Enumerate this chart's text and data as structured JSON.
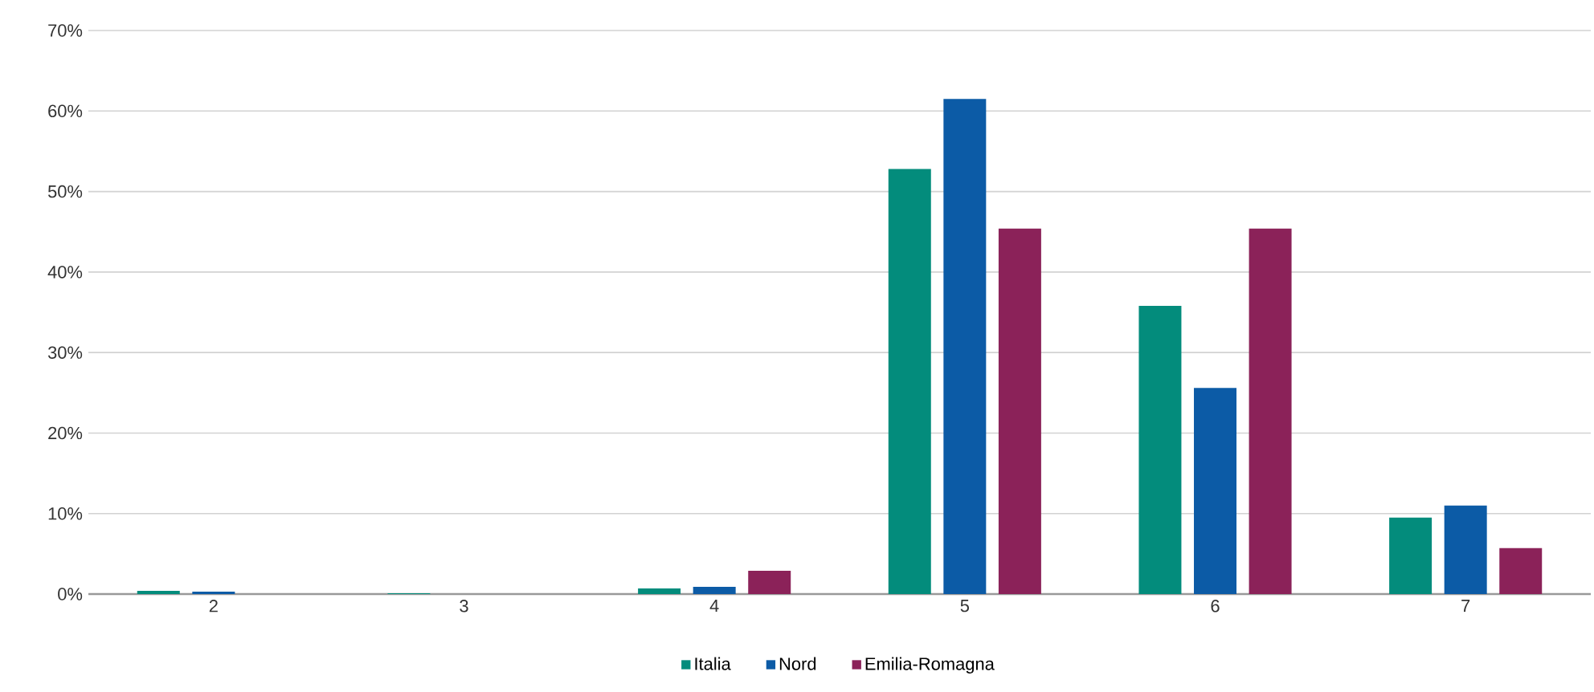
{
  "chart_data": {
    "type": "bar",
    "categories": [
      "2",
      "3",
      "4",
      "5",
      "6",
      "7"
    ],
    "series": [
      {
        "name": "Italia",
        "color": "#038c7c",
        "values": [
          0.4,
          0.1,
          0.7,
          52.8,
          35.8,
          9.5
        ]
      },
      {
        "name": "Nord",
        "color": "#0c5ba6",
        "values": [
          0.3,
          0,
          0.9,
          61.5,
          25.6,
          11.0
        ]
      },
      {
        "name": "Emilia-Romagna",
        "color": "#8b2259",
        "values": [
          0,
          0,
          2.9,
          45.4,
          45.4,
          5.7
        ]
      }
    ],
    "ylim": [
      0,
      70
    ],
    "yticks": [
      {
        "value": 0,
        "label": "0%"
      },
      {
        "value": 10,
        "label": "10%"
      },
      {
        "value": 20,
        "label": "20%"
      },
      {
        "value": 30,
        "label": "30%"
      },
      {
        "value": 40,
        "label": "40%"
      },
      {
        "value": 50,
        "label": "50%"
      },
      {
        "value": 60,
        "label": "60%"
      },
      {
        "value": 70,
        "label": "70%"
      }
    ],
    "grid": "y",
    "legend": "bottom"
  }
}
